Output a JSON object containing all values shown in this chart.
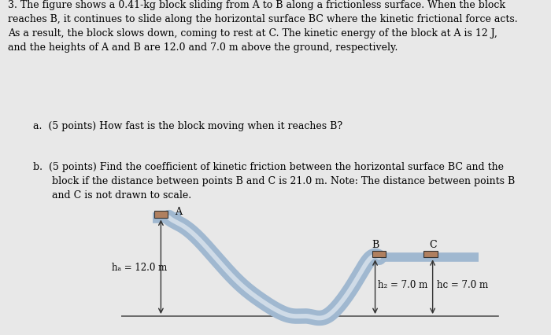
{
  "bg_color": "#e8e8e8",
  "title_text": "3. The figure shows a 0.41-kg block sliding from A to B along a frictionless surface. When the block\nreaches B, it continues to slide along the horizontal surface BC where the kinetic frictional force acts.\nAs a result, the block slows down, coming to rest at C. The kinetic energy of the block at A is 12 J,\nand the heights of A and B are 12.0 and 7.0 m above the ground, respectively.",
  "part_a": "a.  (5 points) How fast is the block moving when it reaches B?",
  "part_b": "b.  (5 points) Find the coefficient of kinetic friction between the horizontal surface BC and the\n      block if the distance between points B and C is 21.0 m. Note: The distance between points B\n      and C is not drawn to scale.",
  "h_A_label": "hₐ = 12.0 m",
  "h_B_label": "h₂ = 7.0 m",
  "h_C_label": "hᴄ = 7.0 m",
  "label_A": "A",
  "label_B": "B",
  "label_C": "C",
  "curve_color": "#a0b8d0",
  "block_color": "#b08060",
  "ground_color": "#555555",
  "arrow_color": "#333333"
}
